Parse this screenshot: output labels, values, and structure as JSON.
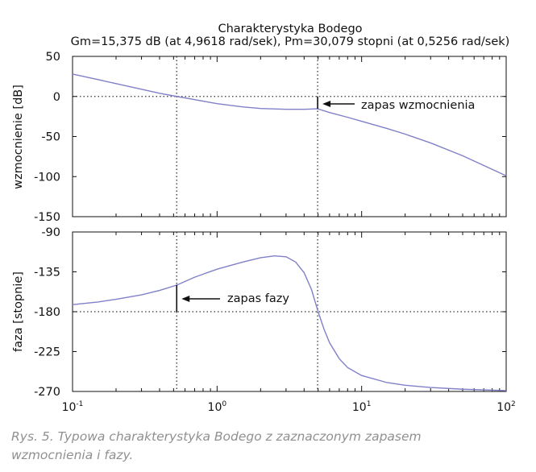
{
  "chart_data": {
    "type": "line",
    "title": "Charakterystyka Bodego",
    "subtitle": "Gm=15,375 dB (at 4,9618 rad/sek), Pm=30,079 stopni (at 0,5256 rad/sek)",
    "line_color": "#8080c8",
    "x_scale": "log",
    "xlim": [
      0.1,
      100
    ],
    "x_ticks": [
      {
        "value": 0.1,
        "base": "10",
        "exp": "-1"
      },
      {
        "value": 1,
        "base": "10",
        "exp": "0"
      },
      {
        "value": 10,
        "base": "10",
        "exp": "1"
      },
      {
        "value": 100,
        "base": "10",
        "exp": "2"
      }
    ],
    "panels": [
      {
        "id": "magnitude",
        "ylabel": "wzmocnienie [dB]",
        "ylim": [
          -150,
          50
        ],
        "y_ticks": [
          50,
          0,
          -50,
          -100,
          -150
        ],
        "y_tick_labels": [
          "50",
          "0",
          "-50",
          "-100",
          "-150"
        ],
        "reference_line": 0,
        "series": [
          {
            "x": [
              0.1,
              0.15,
              0.2,
              0.3,
              0.4,
              0.5256,
              0.7,
              1.0,
              1.5,
              2.0,
              3.0,
              4.0,
              4.9618,
              6.0,
              8.0,
              10,
              15,
              20,
              30,
              50,
              100
            ],
            "y": [
              28,
              21,
              16,
              9,
              4,
              0,
              -4,
              -9,
              -13,
              -15,
              -16,
              -16,
              -15.4,
              -20,
              -26,
              -31,
              -40,
              -47,
              -58,
              -74,
              -99
            ]
          }
        ],
        "annotation": {
          "text": "zapas wzmocnienia",
          "x": 4.9618,
          "y_from": 0,
          "y_to": -15.375
        }
      },
      {
        "id": "phase",
        "ylabel": "faza [stopnie]",
        "ylim": [
          -270,
          -90
        ],
        "y_ticks": [
          -90,
          -135,
          -180,
          -225,
          -270
        ],
        "y_tick_labels": [
          "-90",
          "-135",
          "-180",
          "-225",
          "-270"
        ],
        "reference_line": -180,
        "series": [
          {
            "x": [
              0.1,
              0.15,
              0.2,
              0.3,
              0.4,
              0.5256,
              0.7,
              1.0,
              1.5,
              2.0,
              2.5,
              3.0,
              3.5,
              4.0,
              4.5,
              5.0,
              5.5,
              6.0,
              7.0,
              8.0,
              10,
              15,
              20,
              30,
              50,
              100
            ],
            "y": [
              -172,
              -169,
              -166,
              -161,
              -156,
              -150,
              -141,
              -132,
              -124,
              -119,
              -117,
              -118,
              -124,
              -136,
              -155,
              -180,
              -200,
              -215,
              -233,
              -243,
              -252,
              -260,
              -263,
              -265.5,
              -267.5,
              -269
            ]
          }
        ],
        "annotation": {
          "text": "zapas fazy",
          "x": 0.5256,
          "y_from": -180,
          "y_to": -149.921
        }
      }
    ],
    "crossovers": [
      0.5256,
      4.9618
    ]
  },
  "caption": {
    "line1": "Rys. 5. Typowa charakterystyka Bodego z zaznaczonym zapasem",
    "line2": "wzmocnienia i fazy."
  }
}
